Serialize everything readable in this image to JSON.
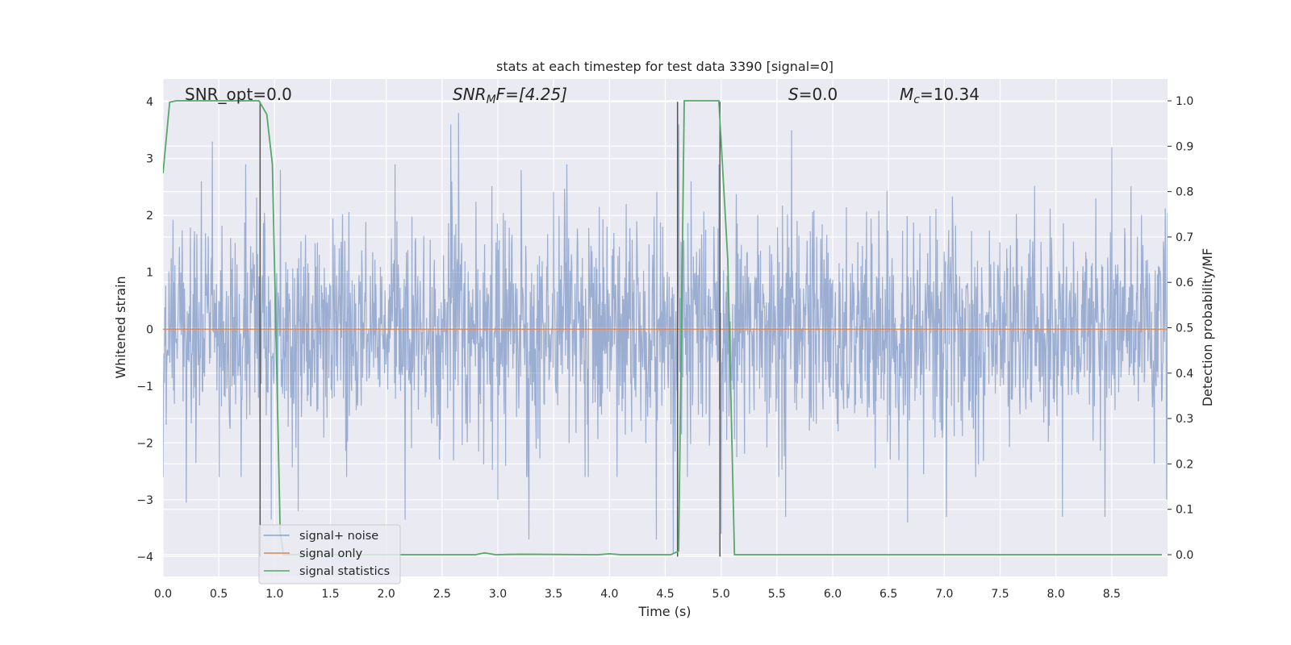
{
  "chart_data": {
    "type": "line",
    "title": "stats at each timestep for test data 3390 [signal=0]",
    "xlabel": "Time (s)",
    "ylabel": "Whitened strain",
    "y2label": "Detection probability/MF",
    "xlim": [
      0,
      9.0
    ],
    "ylim": [
      -4.35,
      4.4
    ],
    "y2lim": [
      -0.048,
      1.048
    ],
    "xticks": [
      0.0,
      0.5,
      1.0,
      1.5,
      2.0,
      2.5,
      3.0,
      3.5,
      4.0,
      4.5,
      5.0,
      5.5,
      6.0,
      6.5,
      7.0,
      7.5,
      8.0,
      8.5
    ],
    "xtick_labels": [
      "0.0",
      "0.5",
      "1.0",
      "1.5",
      "2.0",
      "2.5",
      "3.0",
      "3.5",
      "4.0",
      "4.5",
      "5.0",
      "5.5",
      "6.0",
      "6.5",
      "7.0",
      "7.5",
      "8.0",
      "8.5"
    ],
    "yticks": [
      4,
      3,
      2,
      1,
      0,
      -1,
      -2,
      -3,
      -4
    ],
    "ytick_labels": [
      "4",
      "3",
      "2",
      "1",
      "0",
      "−1",
      "−2",
      "−3",
      "−4"
    ],
    "y2ticks": [
      1.0,
      0.9,
      0.8,
      0.7,
      0.6,
      0.5,
      0.4,
      0.3,
      0.2,
      0.1,
      0.0
    ],
    "y2tick_labels": [
      "1.0",
      "0.9",
      "0.8",
      "0.7",
      "0.6",
      "0.5",
      "0.4",
      "0.3",
      "0.2",
      "0.1",
      "0.0"
    ],
    "grid": true,
    "legend_position": "lower-left",
    "annotations": {
      "snr_opt": "SNR_opt=0.0",
      "snr_mf_base": "SNR",
      "snr_mf_sub": "M",
      "snr_mf_rest": "F=[4.25]",
      "s_var": "S",
      "s_rest": "=0.0",
      "mc_var": "M",
      "mc_sub": "c",
      "mc_rest": "=10.34"
    },
    "series": [
      {
        "name": "signal+ noise",
        "color": "#4c72b0",
        "style": "dense noise, typical range about -2.4 to 2.4, peaks to about 3.8 and -3.9",
        "peaks": [
          {
            "x": 0.44,
            "y": 3.3
          },
          {
            "x": 0.74,
            "y": 2.9
          },
          {
            "x": 1.05,
            "y": 2.8
          },
          {
            "x": 2.08,
            "y": 2.9
          },
          {
            "x": 2.65,
            "y": 3.8
          },
          {
            "x": 2.58,
            "y": 3.6
          },
          {
            "x": 3.21,
            "y": 2.8
          },
          {
            "x": 3.62,
            "y": 2.9
          },
          {
            "x": 4.62,
            "y": 3.6
          },
          {
            "x": 4.98,
            "y": 2.9
          },
          {
            "x": 5.63,
            "y": 3.5
          },
          {
            "x": 8.5,
            "y": 3.2
          },
          {
            "x": 0.21,
            "y": -3.05
          },
          {
            "x": 0.97,
            "y": -3.35
          },
          {
            "x": 1.21,
            "y": -3.2
          },
          {
            "x": 2.17,
            "y": -3.35
          },
          {
            "x": 3.28,
            "y": -3.7
          },
          {
            "x": 3.0,
            "y": -3.0
          },
          {
            "x": 4.42,
            "y": -3.7
          },
          {
            "x": 4.57,
            "y": -3.95
          },
          {
            "x": 5.0,
            "y": -3.6
          },
          {
            "x": 5.58,
            "y": -3.3
          },
          {
            "x": 6.67,
            "y": -3.4
          },
          {
            "x": 7.02,
            "y": -3.3
          },
          {
            "x": 8.06,
            "y": -3.3
          },
          {
            "x": 8.44,
            "y": -3.3
          },
          {
            "x": 8.99,
            "y": -3.0
          }
        ]
      },
      {
        "name": "signal only",
        "color": "#dd8452",
        "x": [
          0.0,
          9.0
        ],
        "y": [
          0.0,
          0.0
        ]
      },
      {
        "name": "signal statistics",
        "color": "#55a868",
        "axis": "right",
        "x": [
          0.0,
          0.06,
          0.12,
          0.5,
          0.86,
          0.93,
          0.98,
          1.05,
          1.08,
          2.5,
          2.8,
          2.88,
          2.98,
          3.2,
          3.9,
          4.0,
          4.1,
          4.55,
          4.62,
          4.67,
          4.98,
          5.06,
          5.12,
          8.95
        ],
        "y": [
          0.84,
          0.997,
          1.0,
          1.0,
          1.0,
          0.97,
          0.86,
          0.05,
          0.0,
          0.0,
          0.0,
          0.004,
          0.0,
          0.001,
          0.0,
          0.002,
          0.0,
          0.0,
          0.008,
          1.0,
          1.0,
          0.65,
          0.0,
          0.0
        ]
      }
    ],
    "vertical_markers": [
      {
        "x": 0.87,
        "y_top": 4.0,
        "y_bottom": -4.0
      },
      {
        "x": 4.61,
        "y_top": 4.0,
        "y_bottom": -4.0
      },
      {
        "x": 4.99,
        "y_top": 4.0,
        "y_bottom": -4.0
      }
    ]
  }
}
